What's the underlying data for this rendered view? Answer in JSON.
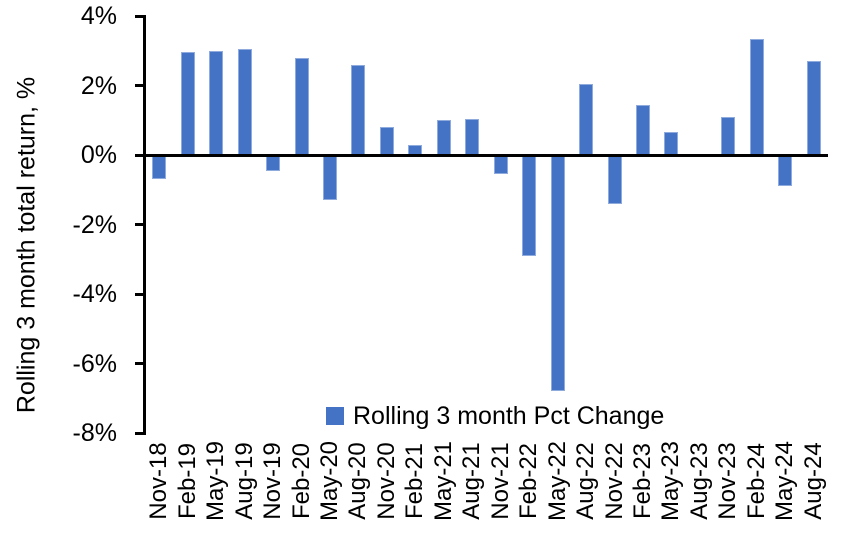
{
  "chart_data": {
    "type": "bar",
    "title": "",
    "xlabel": "",
    "ylabel": "Rolling 3 month total return, %",
    "legend": [
      "Rolling 3 month Pct Change"
    ],
    "legend_position": "bottom-center-inside-plot",
    "grid": false,
    "ylim": [
      -8,
      4
    ],
    "yticks": [
      4,
      2,
      0,
      -2,
      -4,
      -6,
      -8
    ],
    "ytick_labels": [
      "4%",
      "2%",
      "0%",
      "-2%",
      "-4%",
      "-6%",
      "-8%"
    ],
    "categories": [
      "Nov-18",
      "Feb-19",
      "May-19",
      "Aug-19",
      "Nov-19",
      "Feb-20",
      "May-20",
      "Aug-20",
      "Nov-20",
      "Feb-21",
      "May-21",
      "Aug-21",
      "Nov-21",
      "Feb-22",
      "May-22",
      "Aug-22",
      "Nov-22",
      "Feb-23",
      "May-23",
      "Aug-23",
      "Nov-23",
      "Feb-24",
      "May-24",
      "Aug-24"
    ],
    "values": [
      -0.7,
      2.95,
      3.0,
      3.05,
      -0.45,
      2.8,
      -1.3,
      2.6,
      0.8,
      0.3,
      1.0,
      1.05,
      -0.55,
      -2.9,
      -6.8,
      2.05,
      -1.4,
      1.45,
      0.65,
      0,
      1.1,
      3.35,
      -0.9,
      2.7
    ],
    "bar_color": "#4472C4",
    "bar_border_color": "#8FAADC",
    "axis_color": "#000000",
    "text_color": "#000000",
    "background_color": "#FFFFFF"
  }
}
